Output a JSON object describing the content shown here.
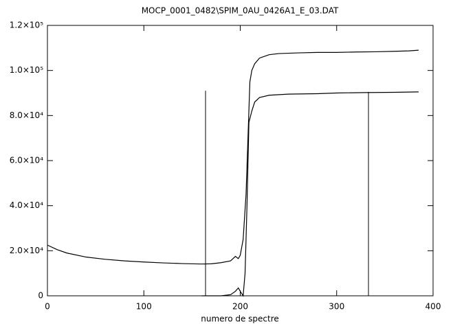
{
  "chart_data": {
    "type": "line",
    "title": "MOCP_0001_0482\\SPIM_0AU_0426A1_E_03.DAT",
    "xlabel": "numero de spectre",
    "xlim": [
      0,
      400
    ],
    "xticks": [
      0,
      100,
      200,
      300,
      400
    ],
    "ylim": [
      0,
      120000
    ],
    "yticks": [
      0,
      {
        "value": 20000,
        "label": "2.0×10⁴"
      },
      {
        "value": 40000,
        "label": "4.0×10⁴"
      },
      {
        "value": 60000,
        "label": "6.0×10⁴"
      },
      {
        "value": 80000,
        "label": "8.0×10⁴"
      },
      {
        "value": 100000,
        "label": "1.0×10⁵"
      },
      {
        "value": 120000,
        "label": "1.2×10⁵"
      }
    ],
    "color": "#000000",
    "series": [
      {
        "x": [
          0,
          10,
          20,
          40,
          60,
          80,
          100,
          120,
          140,
          160,
          170,
          180,
          190,
          195,
          198,
          200,
          203,
          206,
          208,
          210,
          212,
          215,
          220,
          230,
          240,
          260,
          280,
          300,
          320,
          340,
          360,
          375,
          385
        ],
        "values": [
          22500,
          20500,
          19000,
          17200,
          16200,
          15500,
          15000,
          14600,
          14300,
          14100,
          14200,
          14700,
          15500,
          17500,
          16500,
          18000,
          25000,
          45000,
          70000,
          95000,
          100000,
          103000,
          105500,
          107000,
          107500,
          107800,
          108000,
          108000,
          108200,
          108300,
          108500,
          108700,
          109000
        ]
      },
      {
        "x": [
          160,
          180,
          190,
          195,
          198,
          200,
          203,
          205,
          207,
          209,
          212,
          215,
          220,
          230,
          250,
          280,
          300,
          330,
          360,
          385
        ],
        "values": [
          0,
          0,
          500,
          2000,
          3500,
          2000,
          0,
          10000,
          40000,
          77000,
          82000,
          86000,
          88000,
          89000,
          89500,
          89700,
          90000,
          90200,
          90300,
          90500
        ]
      }
    ],
    "vlines": [
      {
        "x": 164,
        "ymax": 91000
      },
      {
        "x": 333,
        "ymax": 90500
      }
    ]
  }
}
